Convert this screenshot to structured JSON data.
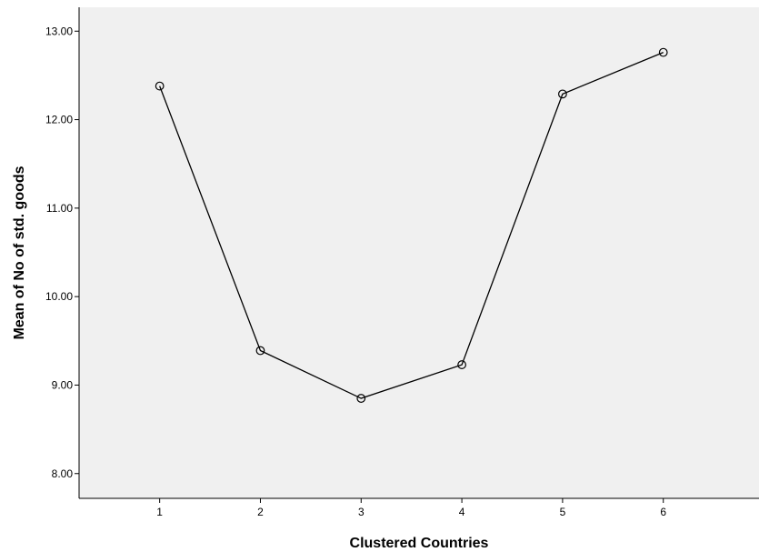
{
  "chart_data": {
    "type": "line",
    "title": "",
    "xlabel": "Clustered Countries",
    "ylabel": "Mean of No of std. goods",
    "x": [
      1,
      2,
      3,
      4,
      5,
      6
    ],
    "x_tick_labels": [
      "1",
      "2",
      "3",
      "4",
      "5",
      "6"
    ],
    "values": [
      12.38,
      9.39,
      8.85,
      9.23,
      12.29,
      12.76
    ],
    "y_ticks": [
      8.0,
      9.0,
      10.0,
      11.0,
      12.0,
      13.0
    ],
    "y_tick_labels": [
      "8.00",
      "9.00",
      "10.00",
      "11.00",
      "12.00",
      "13.00"
    ],
    "xlim": [
      0.2,
      6.95
    ],
    "ylim": [
      7.72,
      13.27
    ],
    "grid": false,
    "marker": "open-circle",
    "colors": {
      "plot_background": "#f0f0f0",
      "line": "#000000",
      "axis": "#000000"
    }
  }
}
